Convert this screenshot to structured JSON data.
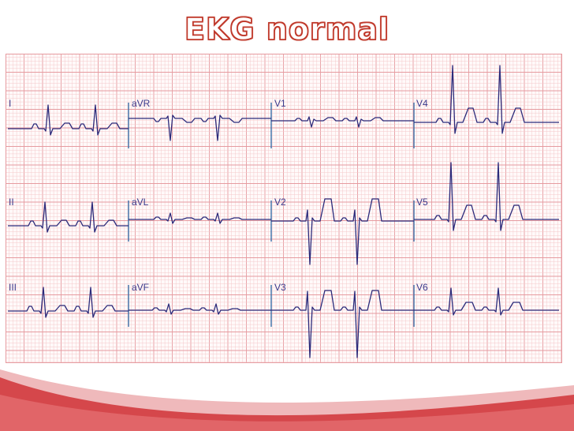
{
  "title": "EKG normal",
  "colors": {
    "grid_minor": "#f4c9cb",
    "grid_major": "#e69ba0",
    "trace": "#2b2a7a",
    "marker": "#3a6fa8",
    "title_stroke": "#c0392b",
    "footer_red": "#d23b3f",
    "footer_pink": "#efb9bb"
  },
  "leads": {
    "row1": [
      "I",
      "aVR",
      "V1",
      "V4"
    ],
    "row2": [
      "II",
      "aVL",
      "V2",
      "V5"
    ],
    "row3": [
      "III",
      "aVF",
      "V3",
      "V6"
    ]
  }
}
